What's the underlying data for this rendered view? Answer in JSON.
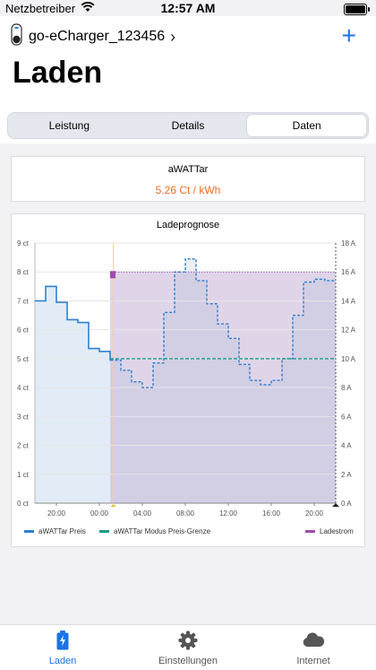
{
  "status_bar": {
    "carrier": "Netzbetreiber",
    "time": "12:57 AM"
  },
  "header": {
    "device_name": "go-eCharger_123456",
    "page_title": "Laden"
  },
  "segments": {
    "items": [
      "Leistung",
      "Details",
      "Daten"
    ],
    "active": "Daten"
  },
  "price_card": {
    "title": "aWATTar",
    "value": "5.26 Ct / kWh"
  },
  "chart_card": {
    "title": "Ladeprognose",
    "legend": [
      "aWATTar Preis",
      "aWATTar Modus Preis-Grenze",
      "Ladestrom"
    ]
  },
  "tabbar": {
    "items": [
      "Laden",
      "Einstellungen",
      "Internet"
    ],
    "active": "Laden"
  },
  "colors": {
    "accent": "#1a73e8",
    "price_orange": "#f26b21",
    "price_line": "#2f80d1",
    "limit_line": "#1a9c8a",
    "charge_current": "#a04ab0"
  },
  "chart_data": {
    "type": "line",
    "title": "Ladeprognose",
    "x_ticks": [
      "20:00",
      "00:00",
      "04:00",
      "08:00",
      "12:00",
      "16:00",
      "20:00"
    ],
    "y_left_ticks": [
      "0 ct",
      "1 ct",
      "2 ct",
      "3 ct",
      "4 ct",
      "5 ct",
      "6 ct",
      "7 ct",
      "8 ct",
      "9 ct"
    ],
    "y_right_ticks": [
      "0 A",
      "2 A",
      "4 A",
      "6 A",
      "8 A",
      "10 A",
      "12 A",
      "14 A",
      "16 A",
      "18 A"
    ],
    "ylim_left": [
      0,
      9
    ],
    "ylim_right": [
      0,
      18
    ],
    "x_hour_range": [
      18,
      46
    ],
    "now_hour": 25.05,
    "series": [
      {
        "name": "aWATTar Preis",
        "hours": [
          18,
          19,
          20,
          21,
          22,
          23,
          24,
          25,
          26,
          27,
          28,
          29,
          30,
          31,
          32,
          33,
          34,
          35,
          36,
          37,
          38,
          39,
          40,
          41,
          42,
          43,
          44,
          45,
          46
        ],
        "values": [
          7.0,
          7.5,
          6.95,
          6.35,
          6.25,
          5.35,
          5.25,
          4.95,
          4.6,
          4.2,
          4.0,
          4.85,
          6.6,
          8.0,
          8.45,
          7.7,
          6.9,
          6.2,
          5.7,
          4.8,
          4.25,
          4.1,
          4.25,
          5.0,
          6.5,
          7.65,
          7.75,
          7.7,
          6.6
        ]
      },
      {
        "name": "aWATTar Modus Preis-Grenze",
        "value": 5.0,
        "from_hour": 25
      },
      {
        "name": "Ladestrom",
        "value_amps": 16,
        "from_hour": 25
      }
    ]
  }
}
